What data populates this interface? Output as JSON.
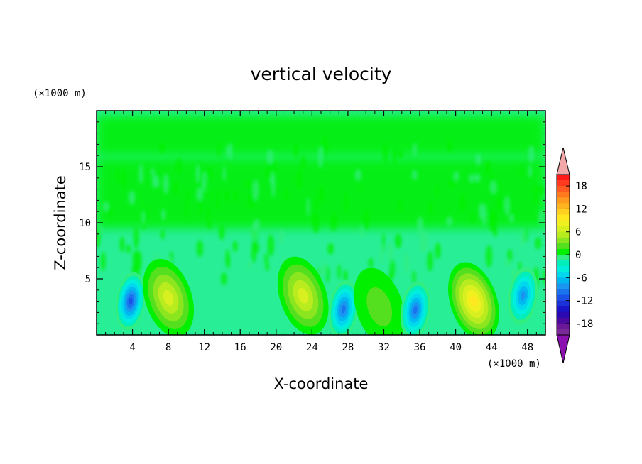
{
  "chart_data": {
    "type": "heatmap",
    "title": "vertical velocity",
    "xlabel": "X-coordinate",
    "ylabel": "Z-coordinate",
    "x_unit": "(×1000 m)",
    "y_unit": "(×1000 m)",
    "xlim": [
      0,
      50
    ],
    "ylim": [
      0,
      20
    ],
    "x_ticks": [
      4,
      8,
      12,
      16,
      20,
      24,
      28,
      32,
      36,
      40,
      44,
      48
    ],
    "y_ticks": [
      5,
      10,
      15
    ],
    "colorbar": {
      "ticks": [
        18,
        12,
        6,
        0,
        -6,
        -12,
        -18
      ],
      "levels": [
        21,
        19.5,
        18,
        16.5,
        15,
        13.5,
        12,
        10.5,
        9,
        7.5,
        6,
        4.5,
        3,
        1.5,
        0,
        -1.5,
        -3,
        -4.5,
        -6,
        -7.5,
        -9,
        -10.5,
        -12,
        -13.5,
        -15,
        -16.5,
        -18,
        -19.5,
        -21
      ],
      "colors": [
        "#ff1a1a",
        "#ff3a1f",
        "#ff5a1f",
        "#ff7a1f",
        "#ff9a1f",
        "#ffb41f",
        "#ffd01f",
        "#ffe81f",
        "#f0f01f",
        "#d8f01f",
        "#b8ec1f",
        "#8ce61f",
        "#55e01f",
        "#00f000",
        "#30ee80",
        "#00eebb",
        "#00eede",
        "#00d8ee",
        "#00b8f0",
        "#1896f0",
        "#1a74ee",
        "#1a52e8",
        "#1a32d8",
        "#1a14c8",
        "#2a0ab0",
        "#4a0aa0",
        "#6a1898",
        "#7a2a98"
      ],
      "over_color": "#f2a8a8",
      "under_color": "#8a10b0"
    },
    "features": [
      {
        "x": 3.8,
        "z": 3.0,
        "value": -12
      },
      {
        "x": 8.0,
        "z": 3.3,
        "value": 8
      },
      {
        "x": 23.0,
        "z": 3.5,
        "value": 8
      },
      {
        "x": 27.5,
        "z": 2.3,
        "value": -10
      },
      {
        "x": 31.5,
        "z": 2.5,
        "value": 3
      },
      {
        "x": 35.5,
        "z": 2.2,
        "value": -10
      },
      {
        "x": 42.0,
        "z": 3.0,
        "value": 10
      },
      {
        "x": 47.5,
        "z": 3.5,
        "value": -9
      }
    ]
  }
}
